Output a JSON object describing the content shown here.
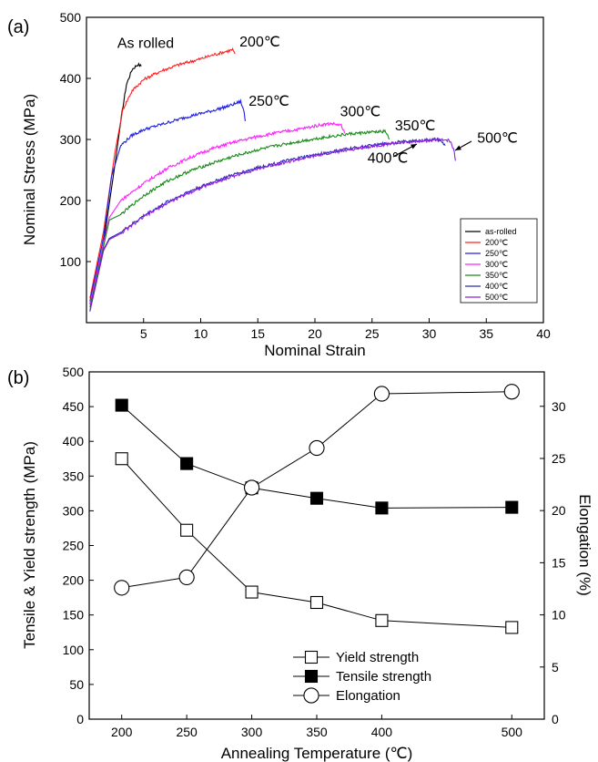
{
  "chart_data": [
    {
      "panel_label": "(a)",
      "type": "line",
      "xlabel": "Nominal Strain",
      "ylabel": "Nominal Stress (MPa)",
      "xlim": [
        0,
        40
      ],
      "ylim": [
        0,
        500
      ],
      "x_ticks": [
        5,
        10,
        15,
        20,
        25,
        30,
        35,
        40
      ],
      "y_ticks": [
        100,
        200,
        300,
        400,
        500
      ],
      "legend_position": "bottom-right",
      "series": [
        {
          "name": "as-rolled",
          "color": "#000000",
          "points": [
            [
              0.3,
              30
            ],
            [
              1.5,
              130
            ],
            [
              2.5,
              260
            ],
            [
              3,
              330
            ],
            [
              3.5,
              390
            ],
            [
              4,
              415
            ],
            [
              4.5,
              423
            ],
            [
              4.8,
              420
            ]
          ]
        },
        {
          "name": "200℃",
          "color": "#ff2020",
          "points": [
            [
              0.3,
              40
            ],
            [
              1.5,
              150
            ],
            [
              2.5,
              280
            ],
            [
              3.2,
              350
            ],
            [
              4,
              380
            ],
            [
              5,
              398
            ],
            [
              6.5,
              412
            ],
            [
              8,
              422
            ],
            [
              10,
              432
            ],
            [
              11,
              438
            ],
            [
              12,
              443
            ],
            [
              12.8,
              447
            ],
            [
              13,
              440
            ]
          ]
        },
        {
          "name": "250℃",
          "color": "#2020e0",
          "points": [
            [
              0.3,
              35
            ],
            [
              1.5,
              140
            ],
            [
              2.2,
              240
            ],
            [
              3,
              290
            ],
            [
              4,
              307
            ],
            [
              5,
              316
            ],
            [
              7,
              327
            ],
            [
              9,
              338
            ],
            [
              11,
              347
            ],
            [
              12.5,
              355
            ],
            [
              13.5,
              362
            ],
            [
              13.8,
              345
            ],
            [
              13.9,
              330
            ]
          ]
        },
        {
          "name": "300℃",
          "color": "#ff20ff",
          "points": [
            [
              0.3,
              30
            ],
            [
              1.5,
              130
            ],
            [
              2,
              172
            ],
            [
              3,
              200
            ],
            [
              5,
              228
            ],
            [
              7,
              252
            ],
            [
              9,
              270
            ],
            [
              11,
              285
            ],
            [
              13,
              296
            ],
            [
              15,
              305
            ],
            [
              17,
              312
            ],
            [
              19,
              318
            ],
            [
              20.5,
              324
            ],
            [
              21.5,
              326
            ],
            [
              22.3,
              323
            ],
            [
              22.6,
              310
            ]
          ]
        },
        {
          "name": "350℃",
          "color": "#1a8a1a",
          "points": [
            [
              0.3,
              25
            ],
            [
              1.5,
              125
            ],
            [
              2,
              168
            ],
            [
              3,
              177
            ],
            [
              5,
              208
            ],
            [
              7,
              231
            ],
            [
              9,
              248
            ],
            [
              11,
              261
            ],
            [
              13,
              273
            ],
            [
              15,
              283
            ],
            [
              17,
              291
            ],
            [
              19,
              298
            ],
            [
              21,
              304
            ],
            [
              23,
              309
            ],
            [
              25,
              312
            ],
            [
              26.2,
              313
            ],
            [
              26.5,
              300
            ]
          ]
        },
        {
          "name": "400℃",
          "color": "#2a2ab0",
          "points": [
            [
              0.3,
              20
            ],
            [
              1.5,
              120
            ],
            [
              2,
              138
            ],
            [
              3,
              148
            ],
            [
              5,
              175
            ],
            [
              7,
              197
            ],
            [
              9,
              215
            ],
            [
              11,
              230
            ],
            [
              13,
              243
            ],
            [
              15,
              254
            ],
            [
              17,
              263
            ],
            [
              19,
              271
            ],
            [
              21,
              278
            ],
            [
              23,
              285
            ],
            [
              25,
              290
            ],
            [
              27,
              295
            ],
            [
              29,
              298
            ],
            [
              30.5,
              300
            ],
            [
              31,
              298
            ],
            [
              31.4,
              290
            ]
          ]
        },
        {
          "name": "500℃",
          "color": "#9020e0",
          "points": [
            [
              0.3,
              18
            ],
            [
              1.5,
              118
            ],
            [
              2,
              136
            ],
            [
              3,
              146
            ],
            [
              5,
              173
            ],
            [
              7,
              195
            ],
            [
              9,
              213
            ],
            [
              11,
              228
            ],
            [
              13,
              241
            ],
            [
              15,
              252
            ],
            [
              17,
              261
            ],
            [
              19,
              269
            ],
            [
              21,
              277
            ],
            [
              23,
              283
            ],
            [
              25,
              289
            ],
            [
              27,
              294
            ],
            [
              29,
              297
            ],
            [
              31,
              300
            ],
            [
              31.8,
              298
            ],
            [
              32.2,
              280
            ],
            [
              32.3,
              265
            ]
          ]
        }
      ],
      "annotations": [
        {
          "text": "As rolled",
          "x": 2.7,
          "y": 450
        },
        {
          "text": "200℃",
          "x": 13.4,
          "y": 452
        },
        {
          "text": "250℃",
          "x": 14.2,
          "y": 355
        },
        {
          "text": "300℃",
          "x": 22.2,
          "y": 338
        },
        {
          "text": "350℃",
          "x": 27.0,
          "y": 315
        },
        {
          "text": "400℃",
          "x": 24.6,
          "y": 262
        },
        {
          "text": "500℃",
          "x": 34.2,
          "y": 295
        }
      ]
    },
    {
      "panel_label": "(b)",
      "type": "line",
      "xlabel": "Annealing Temperature (℃)",
      "ylabel": "Tensile & Yield strength (MPa)",
      "y2label": "Elongation (%)",
      "categories": [
        200,
        250,
        300,
        350,
        400,
        500
      ],
      "xlim": [
        175,
        525
      ],
      "ylim": [
        0,
        500
      ],
      "y2lim": [
        0,
        33.3
      ],
      "y_ticks": [
        0,
        50,
        100,
        150,
        200,
        250,
        300,
        350,
        400,
        450,
        500
      ],
      "y2_ticks": [
        0,
        5,
        10,
        15,
        20,
        25,
        30
      ],
      "legend_position": "bottom-right",
      "series": [
        {
          "name": "Yield strength",
          "marker": "open-square",
          "axis": "left",
          "values": [
            375,
            272,
            183,
            168,
            142,
            132
          ]
        },
        {
          "name": "Tensile strength",
          "marker": "filled-square",
          "axis": "left",
          "values": [
            452,
            368,
            333,
            318,
            304,
            305
          ]
        },
        {
          "name": "Elongation",
          "marker": "open-circle",
          "axis": "right",
          "values": [
            12.6,
            13.6,
            22.2,
            26.0,
            31.2,
            31.4
          ]
        }
      ]
    }
  ]
}
